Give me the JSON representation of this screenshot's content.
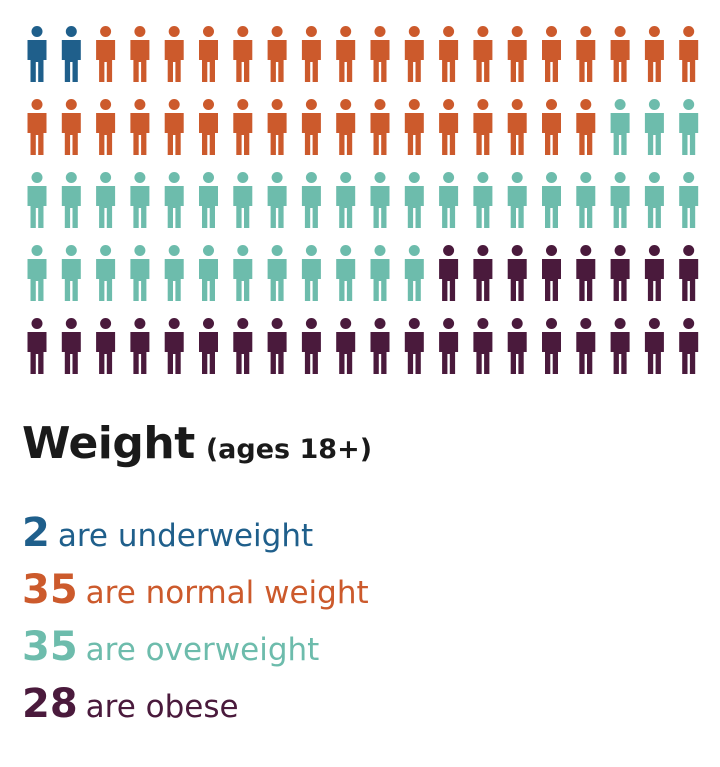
{
  "chart_data": {
    "type": "pictograph",
    "total": 100,
    "columns": 20,
    "rows": 5,
    "title": "Weight",
    "subtitle": "(ages 18+)",
    "categories": [
      {
        "count": 2,
        "count_label": "2",
        "label": "are underweight",
        "color": "#1f5f8b"
      },
      {
        "count": 35,
        "count_label": "35",
        "label": "are normal weight",
        "color": "#cc5a2c"
      },
      {
        "count": 35,
        "count_label": "35",
        "label": "are overweight",
        "color": "#6dbcac"
      },
      {
        "count": 28,
        "count_label": "28",
        "label": "are obese",
        "color": "#4a1a3c"
      }
    ]
  }
}
